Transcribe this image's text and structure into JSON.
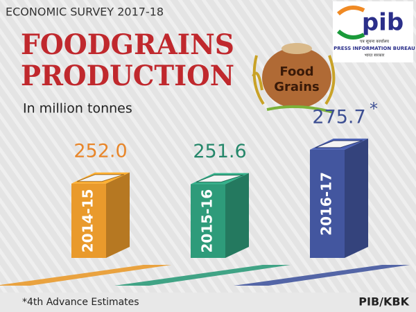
{
  "chart_data": {
    "type": "bar",
    "header": "ECONOMIC SURVEY 2017-18",
    "title_lines": [
      "FOODGRAINS",
      "PRODUCTION"
    ],
    "subtitle": "In million tonnes",
    "categories": [
      "2014-15",
      "2015-16",
      "2016-17"
    ],
    "values": [
      252.0,
      251.6,
      275.7
    ],
    "value_labels": [
      "252.0",
      "251.6",
      "275.7"
    ],
    "value_colors": [
      "#e8862a",
      "#25876a",
      "#3d4f93"
    ],
    "colors": [
      "#e99a2c",
      "#2e9b7a",
      "#43569f"
    ],
    "ylim": [
      200,
      280
    ],
    "estimate_marker": "*",
    "footnote": "*4th Advance Estimates",
    "source": "PIB/KBK",
    "sack_lines": [
      "Food",
      "Grains"
    ],
    "logo": {
      "mark": "pib",
      "hindi_top": "पत्र सूचना कार्यालय",
      "name": "PRESS INFORMATION BUREAU",
      "hindi_bottom": "भारत सरकार"
    }
  }
}
